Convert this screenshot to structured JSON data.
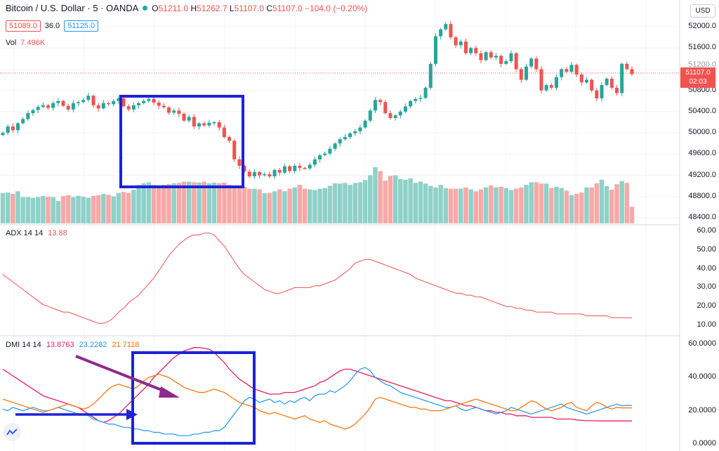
{
  "symbol": {
    "title": "Bitcoin / U.S. Dollar · 5 · OANDA",
    "ohlc": {
      "o_label": "O",
      "o": "51211.0",
      "h_label": "H",
      "h": "51262.7",
      "l_label": "L",
      "l": "51107.0",
      "c_label": "C",
      "c": "51107.0",
      "change": "−104.0 (−0.20%)"
    },
    "bid": "51089.0",
    "spread": "36.0",
    "ask": "51125.0"
  },
  "volume": {
    "label": "Vol",
    "value": "7.496K"
  },
  "price_axis": {
    "currency": "USD",
    "labels": [
      "52000.0",
      "51600.0",
      "51200.0",
      "50800.0",
      "50400.0",
      "50000.0",
      "49600.0",
      "49200.0",
      "48800.0",
      "48400.0"
    ],
    "last_price": "51107.0",
    "countdown": "02:03"
  },
  "adx": {
    "label": "ADX 14 14",
    "value": "13.88",
    "axis": [
      "60.00",
      "50.00",
      "40.00",
      "30.00",
      "20.00",
      "10.00"
    ]
  },
  "dmi": {
    "label": "DMI 14 14",
    "adx_value": "13.8763",
    "plus_di": "23.2282",
    "minus_di": "21.7118",
    "axis": [
      "60.0000",
      "40.0000",
      "20.0000",
      "0.0000"
    ]
  },
  "colors": {
    "up": "#26a69a",
    "down": "#ef5350",
    "adx": "#ef5350",
    "dmi_adx": "#e91e63",
    "plus_di": "#2196f3",
    "minus_di": "#ff6d00",
    "box": "#1e22d8",
    "arrow_purple": "#8e2a8e"
  },
  "chart_data": {
    "type": "candlestick",
    "price_range": [
      48200,
      52300
    ],
    "candle_close": [
      50000,
      50120,
      50050,
      50180,
      50260,
      50370,
      50430,
      50490,
      50520,
      50470,
      50560,
      50600,
      50510,
      50440,
      50560,
      50580,
      50620,
      50700,
      50520,
      50460,
      50560,
      50540,
      50600,
      50650,
      50500,
      50440,
      50520,
      50560,
      50600,
      50640,
      50570,
      50510,
      50480,
      50380,
      50420,
      50360,
      50230,
      50300,
      50120,
      50180,
      50140,
      50190,
      50200,
      50100,
      49920,
      49850,
      49500,
      49380,
      49270,
      49180,
      49260,
      49200,
      49220,
      49180,
      49300,
      49250,
      49370,
      49280,
      49380,
      49340,
      49330,
      49400,
      49500,
      49580,
      49610,
      49700,
      49800,
      49880,
      49920,
      49990,
      50030,
      50100,
      50230,
      50420,
      50620,
      50580,
      50370,
      50280,
      50330,
      50400,
      50500,
      50600,
      50640,
      50660,
      50850,
      51300,
      51820,
      51950,
      52050,
      51800,
      51650,
      51720,
      51500,
      51600,
      51500,
      51370,
      51520,
      51420,
      51450,
      51300,
      51350,
      51500,
      51200,
      51000,
      51250,
      51400,
      51200,
      50800,
      50900,
      50850,
      51050,
      51200,
      51150,
      51280,
      51100,
      50950,
      51000,
      50800,
      50650,
      50900,
      51020,
      50850,
      50750,
      51300,
      51200,
      51107
    ],
    "volume": [
      95,
      96,
      92,
      100,
      82,
      82,
      80,
      82,
      85,
      83,
      82,
      70,
      85,
      88,
      82,
      86,
      83,
      80,
      86,
      88,
      92,
      89,
      84,
      95,
      98,
      95,
      105,
      120,
      125,
      128,
      120,
      119,
      120,
      122,
      125,
      126,
      130,
      130,
      128,
      127,
      130,
      125,
      127,
      125,
      127,
      120,
      115,
      112,
      114,
      108,
      108,
      106,
      94,
      95,
      100,
      106,
      100,
      108,
      112,
      120,
      108,
      106,
      104,
      108,
      110,
      117,
      125,
      124,
      126,
      120,
      126,
      128,
      135,
      150,
      175,
      163,
      133,
      148,
      150,
      138,
      136,
      140,
      126,
      130,
      124,
      117,
      112,
      120,
      110,
      108,
      108,
      108,
      112,
      106,
      100,
      106,
      112,
      118,
      112,
      114,
      110,
      104,
      108,
      112,
      120,
      128,
      128,
      124,
      124,
      110,
      114,
      110,
      102,
      88,
      92,
      96,
      112,
      112,
      125,
      136,
      116,
      105,
      122,
      132,
      126,
      52
    ],
    "adx": [
      37,
      35,
      33,
      31,
      29,
      27,
      25,
      23,
      21,
      20,
      19,
      18,
      17,
      17,
      16,
      15,
      14,
      13,
      12,
      11,
      11,
      12,
      14,
      17,
      19,
      22,
      24,
      26,
      29,
      32,
      35,
      39,
      43,
      47,
      50,
      53,
      55,
      57,
      58,
      58,
      59,
      59,
      58,
      55,
      52,
      48,
      44,
      40,
      37,
      35,
      33,
      31,
      29,
      28,
      27,
      27,
      28,
      29,
      30,
      30,
      30,
      30,
      31,
      31,
      32,
      33,
      34,
      36,
      38,
      40,
      43,
      44,
      45,
      45,
      44,
      43,
      42,
      41,
      40,
      39,
      38,
      37,
      35,
      34,
      33,
      32,
      31,
      30,
      29,
      28,
      27,
      27,
      26,
      26,
      25,
      25,
      24,
      23,
      22,
      21,
      20,
      20,
      19,
      19,
      18,
      18,
      17,
      17,
      17,
      17,
      16,
      16,
      16,
      16,
      16,
      16,
      15,
      15,
      15,
      15,
      15,
      14,
      14,
      14,
      14,
      13.9
    ],
    "dmi_adx": [
      45,
      43,
      41,
      39,
      37,
      35,
      33,
      31,
      29,
      28,
      27,
      26,
      25,
      24,
      23,
      22,
      20,
      18,
      16,
      14,
      13,
      14,
      16,
      18,
      21,
      24,
      27,
      30,
      33,
      36,
      40,
      43,
      46,
      49,
      52,
      54,
      56,
      57,
      58,
      58,
      57.5,
      57,
      55,
      52,
      49,
      45,
      42,
      39,
      37,
      35,
      33,
      32,
      31,
      30,
      30,
      30,
      31,
      31,
      31,
      32,
      33,
      34,
      35,
      37,
      38,
      40,
      42,
      44,
      45,
      45,
      44,
      43,
      42,
      41,
      40,
      39,
      38,
      37,
      36,
      35,
      34,
      33,
      32,
      31,
      30,
      29,
      28,
      27,
      26,
      26,
      25,
      24,
      23,
      23,
      22,
      21,
      20,
      20,
      19,
      19,
      18,
      18,
      17,
      17,
      17,
      16,
      16,
      16,
      16,
      16,
      15,
      15,
      15,
      15,
      14.5,
      14.2,
      14,
      14,
      13.9,
      13.88,
      13.88,
      13.88,
      13.88,
      13.88,
      13.88,
      13.88
    ],
    "plus_di": [
      21,
      20,
      22,
      21,
      20,
      21,
      22,
      21,
      20,
      20,
      21,
      22,
      21,
      20,
      19,
      18,
      18,
      17,
      15,
      14,
      13,
      12,
      12,
      11,
      10,
      10,
      9,
      9,
      8,
      8,
      7,
      7,
      6,
      6,
      6,
      5,
      5,
      5,
      6,
      6,
      7,
      7,
      8,
      8,
      10,
      14,
      18,
      22,
      26,
      28,
      27,
      25,
      26,
      27,
      25,
      26,
      24,
      26,
      25,
      27,
      28,
      26,
      29,
      30,
      30,
      32,
      31,
      33,
      35,
      38,
      42,
      45,
      46,
      44,
      40,
      38,
      36,
      35,
      33,
      31,
      30,
      29,
      28,
      27,
      26,
      25,
      24,
      23,
      22,
      22,
      23,
      21,
      20,
      21,
      22,
      21,
      20,
      19,
      18,
      19,
      20,
      22,
      21,
      20,
      19,
      18,
      19,
      20,
      21,
      22,
      23,
      24,
      22,
      21,
      20,
      19,
      18,
      19,
      20,
      21,
      22,
      23,
      24,
      23,
      23.2,
      23.2
    ],
    "minus_di": [
      27,
      26,
      25,
      24,
      23,
      22,
      21,
      20,
      19,
      20,
      21,
      22,
      23,
      24,
      23,
      22,
      21,
      22,
      24,
      27,
      30,
      33,
      35,
      36,
      35,
      34,
      33,
      35,
      38,
      40,
      41,
      42,
      41,
      40,
      38,
      36,
      34,
      33,
      32,
      31,
      31,
      32,
      33,
      32,
      31,
      29,
      27,
      25,
      24,
      23,
      22,
      20,
      19,
      18,
      19,
      18,
      17,
      16,
      15,
      16,
      17,
      15,
      14,
      13,
      14,
      12,
      11,
      10,
      9,
      10,
      12,
      15,
      18,
      22,
      27,
      28,
      27,
      26,
      25,
      24,
      23,
      22,
      22,
      21,
      21,
      20,
      20,
      20,
      21,
      22,
      23,
      24,
      25,
      26,
      27,
      26,
      25,
      24,
      23,
      22,
      21,
      20,
      20,
      22,
      24,
      26,
      25,
      23,
      21,
      20,
      21,
      22,
      24,
      25,
      22,
      21,
      20,
      23,
      25,
      24,
      22,
      21,
      22,
      21.7,
      21.7,
      21.7
    ]
  }
}
